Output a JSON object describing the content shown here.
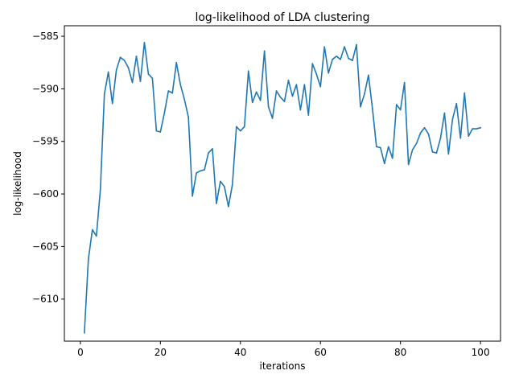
{
  "chart_data": {
    "type": "line",
    "title": "log-likelihood of LDA clustering",
    "xlabel": "iterations",
    "ylabel": "log-likelihood",
    "xlim": [
      -4,
      105
    ],
    "ylim": [
      -614,
      -584
    ],
    "xticks": [
      0,
      20,
      40,
      60,
      80,
      100
    ],
    "yticks": [
      -610,
      -605,
      -600,
      -595,
      -590,
      -585
    ],
    "xtick_labels": [
      "0",
      "20",
      "40",
      "60",
      "80",
      "100"
    ],
    "ytick_labels": [
      "−610",
      "−605",
      "−600",
      "−595",
      "−590",
      "−585"
    ],
    "grid": false,
    "series": [
      {
        "color": "#1f77b4",
        "x": [
          1,
          2,
          3,
          4,
          5,
          6,
          7,
          8,
          9,
          10,
          11,
          12,
          13,
          14,
          15,
          16,
          17,
          18,
          19,
          20,
          21,
          22,
          23,
          24,
          25,
          26,
          27,
          28,
          29,
          30,
          31,
          32,
          33,
          34,
          35,
          36,
          37,
          38,
          39,
          40,
          41,
          42,
          43,
          44,
          45,
          46,
          47,
          48,
          49,
          50,
          51,
          52,
          53,
          54,
          55,
          56,
          57,
          58,
          59,
          60,
          61,
          62,
          63,
          64,
          65,
          66,
          67,
          68,
          69,
          70,
          71,
          72,
          73,
          74,
          75,
          76,
          77,
          78,
          79,
          80,
          81,
          82,
          83,
          84,
          85,
          86,
          87,
          88,
          89,
          90,
          91,
          92,
          93,
          94,
          95,
          96,
          97,
          98,
          99,
          100
        ],
        "y": [
          -613.2,
          -606.2,
          -603.4,
          -604.0,
          -599.6,
          -590.5,
          -588.4,
          -591.4,
          -588.2,
          -587.0,
          -587.3,
          -588.0,
          -589.4,
          -586.9,
          -589.3,
          -585.6,
          -588.6,
          -589.0,
          -594.0,
          -594.1,
          -592.3,
          -590.2,
          -590.4,
          -587.5,
          -589.6,
          -591.0,
          -592.7,
          -600.2,
          -598.0,
          -597.8,
          -597.7,
          -596.1,
          -595.7,
          -600.9,
          -598.8,
          -599.3,
          -601.2,
          -599.1,
          -593.6,
          -594.0,
          -593.6,
          -588.3,
          -591.3,
          -590.3,
          -591.1,
          -586.4,
          -591.7,
          -592.8,
          -590.2,
          -590.8,
          -591.2,
          -589.2,
          -590.7,
          -589.6,
          -592.0,
          -589.6,
          -592.5,
          -587.6,
          -588.6,
          -589.8,
          -586.0,
          -588.5,
          -587.2,
          -586.9,
          -587.2,
          -586.0,
          -587.1,
          -587.3,
          -585.8,
          -591.7,
          -590.5,
          -588.7,
          -591.9,
          -595.5,
          -595.6,
          -597.1,
          -595.5,
          -596.6,
          -591.5,
          -592.0,
          -589.4,
          -597.2,
          -595.8,
          -595.2,
          -594.2,
          -593.7,
          -594.3,
          -596.0,
          -596.1,
          -594.7,
          -592.3,
          -596.2,
          -592.9,
          -591.4,
          -594.7,
          -590.4,
          -594.5,
          -593.8,
          -593.8,
          -593.7
        ]
      }
    ]
  }
}
